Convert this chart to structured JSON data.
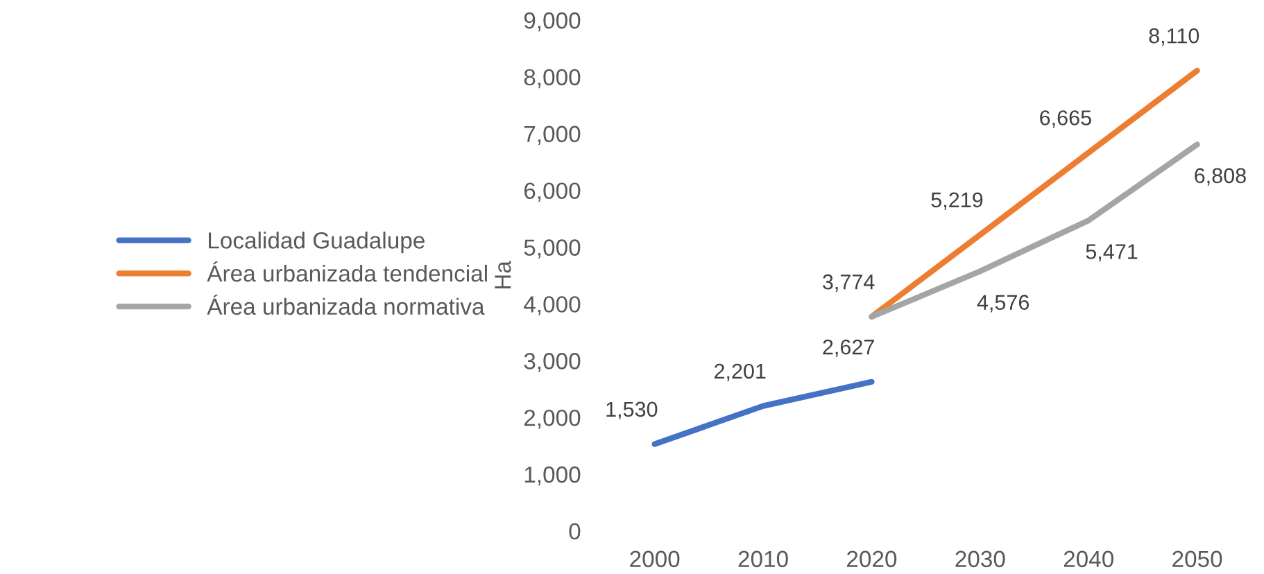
{
  "chart_data": {
    "type": "line",
    "ylabel": "Ha",
    "categories": [
      "2000",
      "2010",
      "2020",
      "2030",
      "2040",
      "2050"
    ],
    "series": [
      {
        "name": "Localidad Guadalupe",
        "color": "#4472c4",
        "values": [
          1530,
          2201,
          2627,
          null,
          null,
          null
        ],
        "value_labels": [
          "1,530",
          "2,201",
          "2,627",
          null,
          null,
          null
        ]
      },
      {
        "name": "Área urbanizada tendencial",
        "color": "#ed7d31",
        "values": [
          null,
          null,
          3774,
          5219,
          6665,
          8110
        ],
        "value_labels": [
          null,
          null,
          "3,774",
          "5,219",
          "6,665",
          "8,110"
        ]
      },
      {
        "name": "Área urbanizada normativa",
        "color": "#a5a5a5",
        "values": [
          null,
          null,
          3774,
          4576,
          5471,
          6808
        ],
        "value_labels": [
          null,
          null,
          null,
          "4,576",
          "5,471",
          "6,808"
        ]
      }
    ],
    "ylim": [
      0,
      9000
    ],
    "yticks": [
      {
        "value": 0,
        "label": "0"
      },
      {
        "value": 1000,
        "label": "1,000"
      },
      {
        "value": 2000,
        "label": "2,000"
      },
      {
        "value": 3000,
        "label": "3,000"
      },
      {
        "value": 4000,
        "label": "4,000"
      },
      {
        "value": 5000,
        "label": "5,000"
      },
      {
        "value": 6000,
        "label": "6,000"
      },
      {
        "value": 7000,
        "label": "7,000"
      },
      {
        "value": 8000,
        "label": "8,000"
      },
      {
        "value": 9000,
        "label": "9,000"
      }
    ],
    "grid": false,
    "legend": "left",
    "marker": "none",
    "line_style": "solid"
  }
}
